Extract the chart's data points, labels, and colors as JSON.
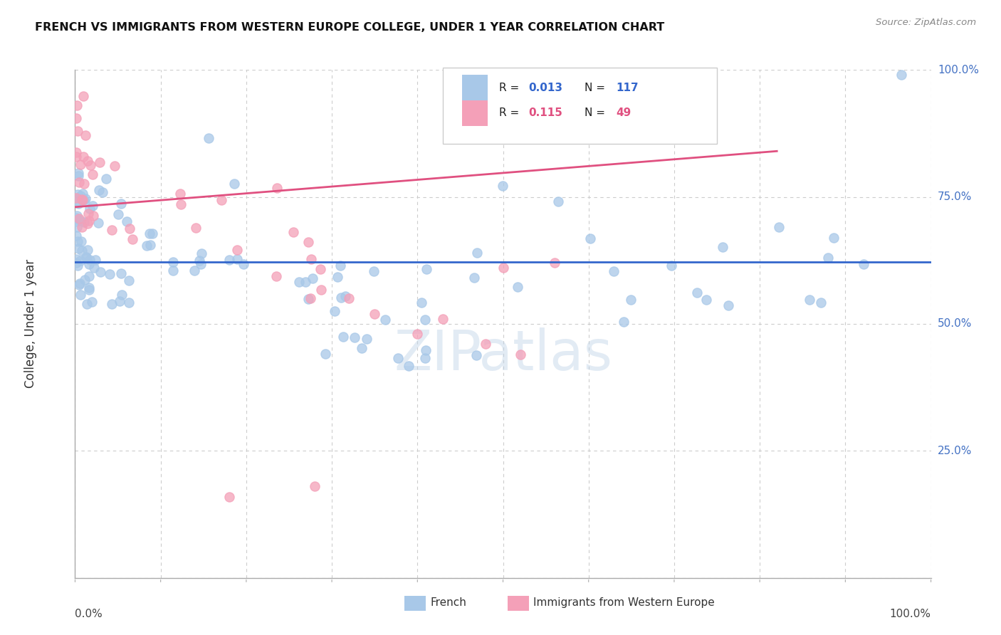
{
  "title": "FRENCH VS IMMIGRANTS FROM WESTERN EUROPE COLLEGE, UNDER 1 YEAR CORRELATION CHART",
  "source": "Source: ZipAtlas.com",
  "ylabel": "College, Under 1 year",
  "legend_french_r": "0.013",
  "legend_french_n": "117",
  "legend_immigrants_r": "0.115",
  "legend_immigrants_n": "49",
  "french_color": "#a8c8e8",
  "immigrants_color": "#f4a0b8",
  "french_line_color": "#3366cc",
  "immigrants_line_color": "#e05080",
  "right_label_color": "#4472c4",
  "background_color": "#ffffff",
  "grid_color": "#cccccc",
  "french_trend": [
    0.0,
    1.0,
    0.622,
    0.622
  ],
  "immigrants_trend": [
    0.0,
    0.82,
    0.73,
    0.84
  ],
  "xlim": [
    0.0,
    1.0
  ],
  "ylim": [
    0.0,
    1.0
  ],
  "right_ticks": {
    "100.0%": 1.0,
    "75.0%": 0.75,
    "50.0%": 0.5,
    "25.0%": 0.25
  }
}
